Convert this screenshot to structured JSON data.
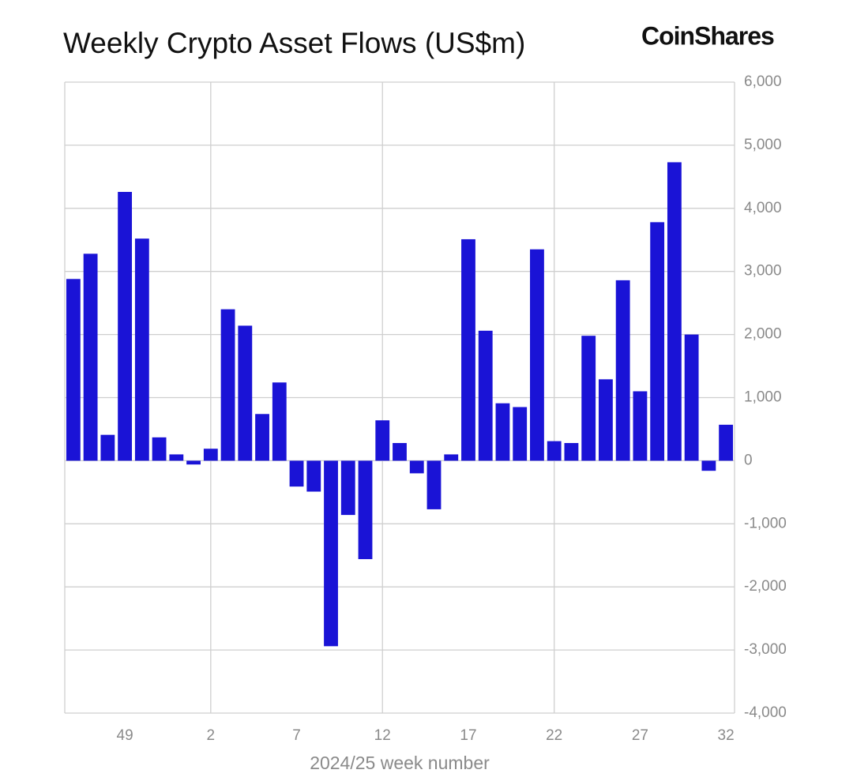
{
  "chart_data": {
    "type": "bar",
    "title": "Weekly Crypto Asset Flows (US$m)",
    "brand": "CoinShares",
    "x_label": "2024/25 week number",
    "color": "#1a13d6",
    "grid": true,
    "categories": [
      null,
      null,
      null,
      "49",
      null,
      null,
      null,
      null,
      "2",
      null,
      null,
      null,
      null,
      "7",
      null,
      null,
      null,
      null,
      "12",
      null,
      null,
      null,
      null,
      "17",
      null,
      null,
      null,
      null,
      "22",
      null,
      null,
      null,
      null,
      "27",
      null,
      null,
      null,
      null,
      "32"
    ],
    "values": [
      2880,
      3280,
      410,
      4260,
      3520,
      370,
      100,
      -60,
      190,
      2400,
      2140,
      740,
      1240,
      -410,
      -490,
      -2940,
      -860,
      -1560,
      640,
      280,
      -200,
      -770,
      100,
      3510,
      2060,
      910,
      850,
      3350,
      310,
      280,
      1980,
      1290,
      2860,
      1100,
      3780,
      4730,
      2000,
      -160,
      570
    ],
    "ylim": [
      -4000,
      6000
    ],
    "yticks": [
      {
        "value": -4000,
        "label": "-4,000"
      },
      {
        "value": -3000,
        "label": "-3,000"
      },
      {
        "value": -2000,
        "label": "-2,000"
      },
      {
        "value": -1000,
        "label": "-1,000"
      },
      0,
      {
        "value": 1000,
        "label": "1,000"
      },
      {
        "value": 2000,
        "label": "2,000"
      },
      {
        "value": 3000,
        "label": "3,000"
      },
      {
        "value": 4000,
        "label": "4,000"
      },
      {
        "value": 5000,
        "label": "5,000"
      },
      {
        "value": 6000,
        "label": "6,000"
      }
    ]
  }
}
